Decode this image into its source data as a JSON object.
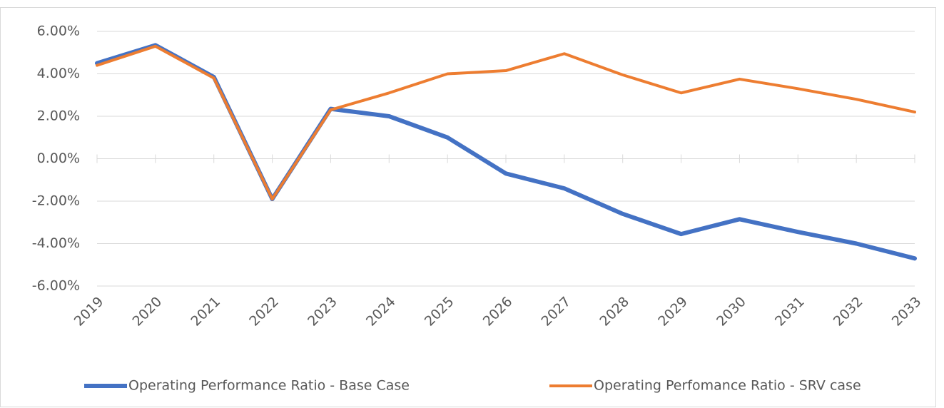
{
  "chart_data": {
    "type": "line",
    "categories": [
      "2019",
      "2020",
      "2021",
      "2022",
      "2023",
      "2024",
      "2025",
      "2026",
      "2027",
      "2028",
      "2029",
      "2030",
      "2031",
      "2032",
      "2033"
    ],
    "series": [
      {
        "name": "Operating Performance Ratio - Base Case",
        "color": "#4472c4",
        "values": [
          4.5,
          5.35,
          3.85,
          -1.9,
          2.35,
          2.0,
          1.0,
          -0.7,
          -1.4,
          -2.6,
          -3.55,
          -2.85,
          -3.45,
          -4.0,
          -4.7
        ]
      },
      {
        "name": "Operating Perfomance Ratio - SRV case",
        "color": "#ed7d31",
        "values": [
          4.4,
          5.3,
          3.8,
          -1.9,
          2.3,
          3.1,
          4.0,
          4.15,
          4.95,
          3.95,
          3.1,
          3.75,
          3.3,
          2.8,
          2.2
        ]
      }
    ],
    "ylim": [
      -6,
      6
    ],
    "yticks": [
      {
        "value": -6,
        "label": "-6.00%"
      },
      {
        "value": -4,
        "label": "-4.00%"
      },
      {
        "value": -2,
        "label": "-2.00%"
      },
      {
        "value": 0,
        "label": "0.00%"
      },
      {
        "value": 2,
        "label": "2.00%"
      },
      {
        "value": 4,
        "label": "4.00%"
      },
      {
        "value": 6,
        "label": "6.00%"
      }
    ],
    "grid": true,
    "legend": "bottom"
  }
}
